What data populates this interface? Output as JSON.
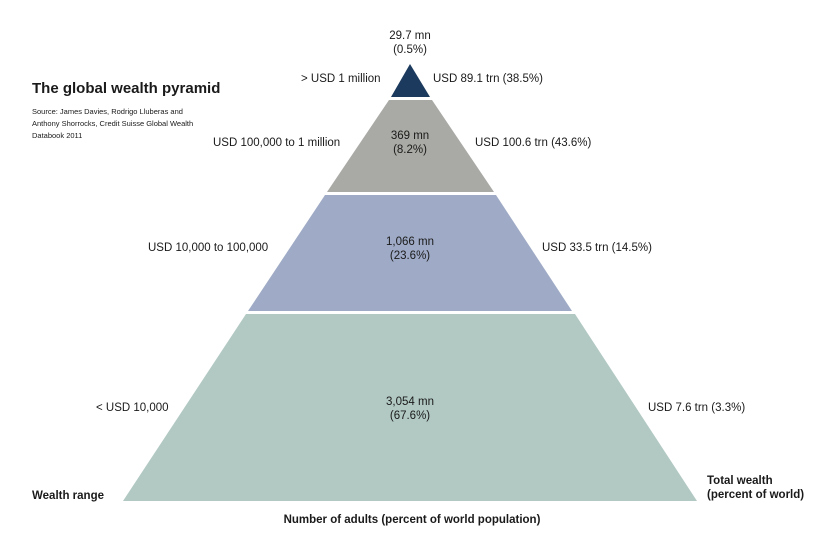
{
  "title": "The global wealth pyramid",
  "source": "Source: James Davies, Rodrigo Lluberas and Anthony Shorrocks, Credit Suisse Global Wealth Databook 2011",
  "axis": {
    "left": "Wealth range",
    "right": [
      "Total wealth",
      "(percent of world)"
    ],
    "bottom": "Number of adults (percent of world population)"
  },
  "tiers": [
    {
      "range": "> USD 1 million",
      "adults": "29.7 mn",
      "adults_pct": "(0.5%)",
      "wealth": "USD 89.1 trn (38.5%)",
      "color": "#1c3a5e"
    },
    {
      "range": "USD 100,000 to 1 million",
      "adults": "369 mn",
      "adults_pct": "(8.2%)",
      "wealth": "USD 100.6 trn (43.6%)",
      "color": "#a9aaa5"
    },
    {
      "range": "USD 10,000 to 100,000",
      "adults": "1,066 mn",
      "adults_pct": "(23.6%)",
      "wealth": "USD 33.5 trn (14.5%)",
      "color": "#9fabc6"
    },
    {
      "range": "< USD 10,000",
      "adults": "3,054 mn",
      "adults_pct": "(67.6%)",
      "wealth": "USD 7.6 trn (3.3%)",
      "color": "#b2c9c3"
    }
  ]
}
